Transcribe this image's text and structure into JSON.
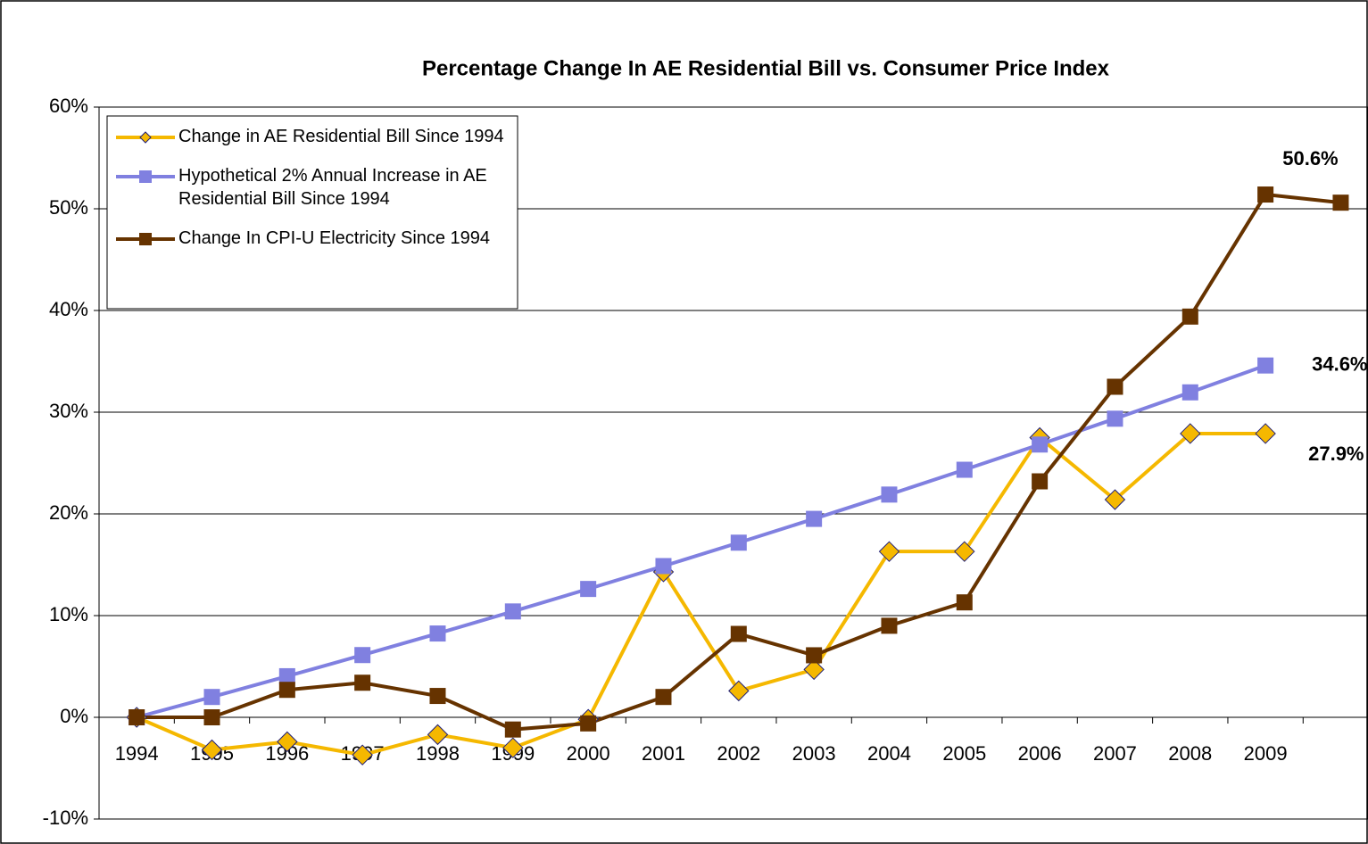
{
  "chart_data": {
    "type": "line",
    "title": "Percentage Change In AE Residential Bill vs. Consumer Price Index",
    "categories": [
      "1994",
      "1995",
      "1996",
      "1997",
      "1998",
      "1999",
      "2000",
      "2001",
      "2002",
      "2003",
      "2004",
      "2005",
      "2006",
      "2007",
      "2008",
      "2009",
      null
    ],
    "ylim": [
      -10,
      60
    ],
    "yticks": [
      {
        "value": -10,
        "label": "-10%"
      },
      {
        "value": 0,
        "label": "0%"
      },
      {
        "value": 10,
        "label": "10%"
      },
      {
        "value": 20,
        "label": "20%"
      },
      {
        "value": 30,
        "label": "30%"
      },
      {
        "value": 40,
        "label": "40%"
      },
      {
        "value": 50,
        "label": "50%"
      },
      {
        "value": 60,
        "label": "60%"
      }
    ],
    "grid": true,
    "legend": "top-left",
    "series": [
      {
        "name": "Change in AE Residential Bill Since 1994",
        "color": "#f5b800",
        "marker": "diamond",
        "values": [
          0,
          -3.2,
          -2.4,
          -3.7,
          -1.7,
          -3.0,
          -0.2,
          14.3,
          2.6,
          4.7,
          16.3,
          16.3,
          27.5,
          21.4,
          27.9,
          27.9,
          null
        ],
        "value_labels": [
          null,
          null,
          null,
          null,
          null,
          null,
          null,
          null,
          null,
          null,
          null,
          null,
          null,
          null,
          null,
          "27.9%",
          null
        ]
      },
      {
        "name": "Hypothetical 2% Annual Increase in AE Residential Bill Since 1994",
        "color": "#8080e0",
        "marker": "square",
        "values": [
          0,
          2.0,
          4.04,
          6.12,
          8.24,
          10.41,
          12.62,
          14.87,
          17.17,
          19.51,
          21.9,
          24.34,
          26.82,
          29.36,
          31.95,
          34.59,
          null
        ],
        "value_labels": [
          null,
          null,
          null,
          null,
          null,
          null,
          null,
          null,
          null,
          null,
          null,
          null,
          null,
          null,
          null,
          "34.6%",
          null
        ]
      },
      {
        "name": "Change In CPI-U Electricity Since 1994",
        "color": "#663300",
        "marker": "square",
        "values": [
          0,
          0,
          2.7,
          3.4,
          2.1,
          -1.2,
          -0.6,
          2.0,
          8.2,
          6.1,
          9.0,
          11.3,
          23.2,
          32.5,
          39.4,
          51.4,
          50.6
        ],
        "value_labels": [
          null,
          null,
          null,
          null,
          null,
          null,
          null,
          null,
          null,
          null,
          null,
          null,
          null,
          null,
          null,
          null,
          "50.6%"
        ]
      }
    ]
  }
}
